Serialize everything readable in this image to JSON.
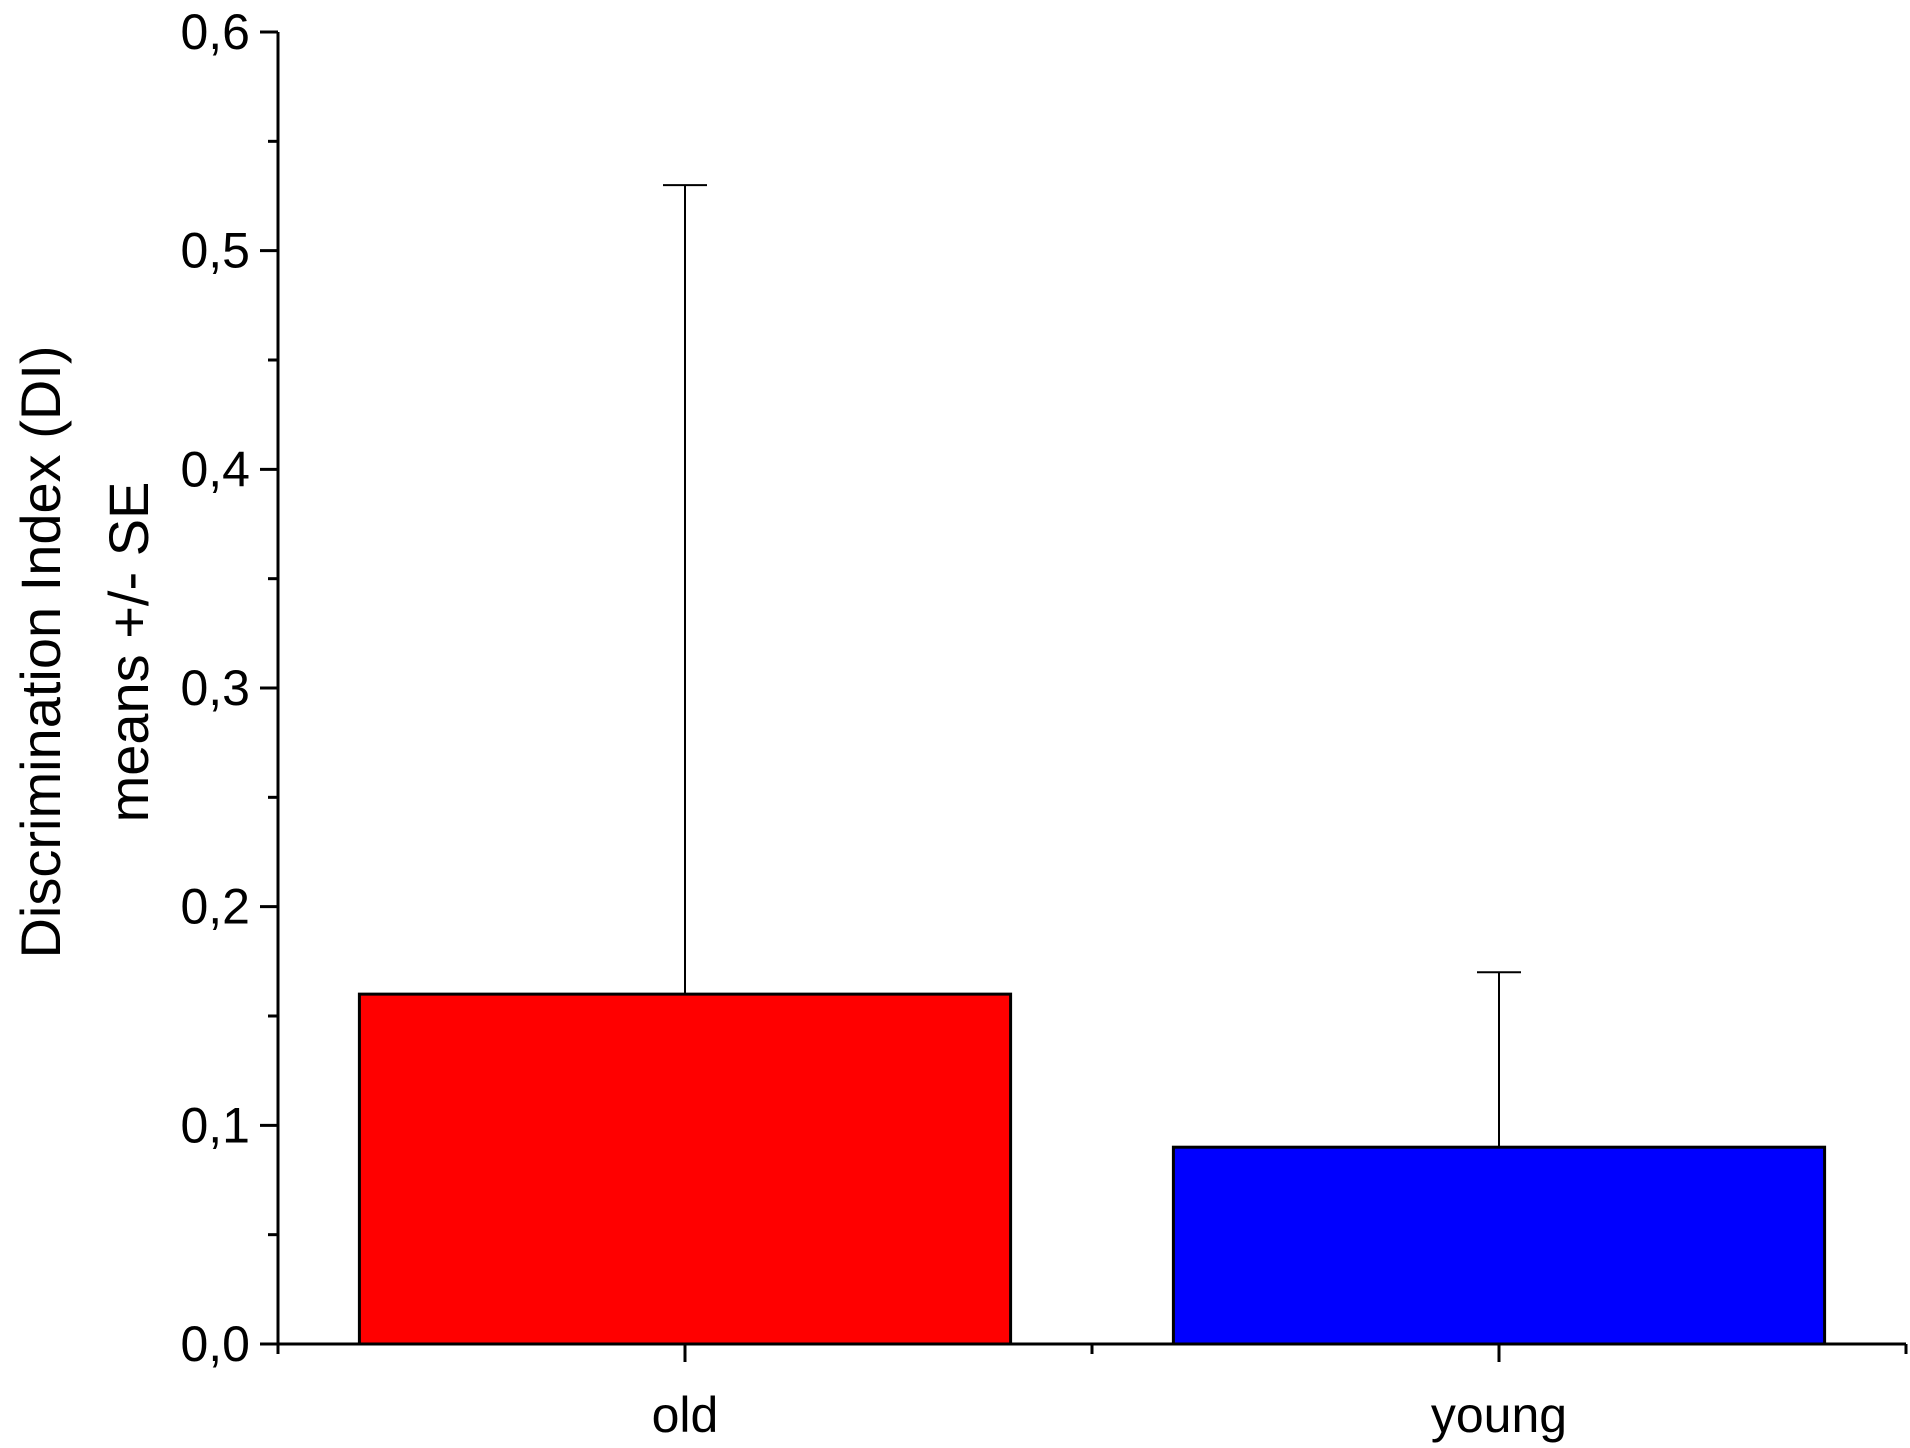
{
  "chart_data": {
    "type": "bar",
    "categories": [
      "old",
      "young"
    ],
    "values": [
      0.16,
      0.09
    ],
    "errors": [
      0.37,
      0.08
    ],
    "colors": [
      "#ff0000",
      "#0000ff"
    ],
    "ylabel_lines": [
      "Discrimination Index (DI)",
      "means +/- SE"
    ],
    "ylim": [
      0,
      0.6
    ],
    "yticks": [
      0.0,
      0.1,
      0.2,
      0.3,
      0.4,
      0.5,
      0.6
    ],
    "ytick_labels": [
      "0,0",
      "0,1",
      "0,2",
      "0,3",
      "0,4",
      "0,5",
      "0,6"
    ],
    "yminor_step": 0.05,
    "grid": false,
    "legend": "none"
  }
}
